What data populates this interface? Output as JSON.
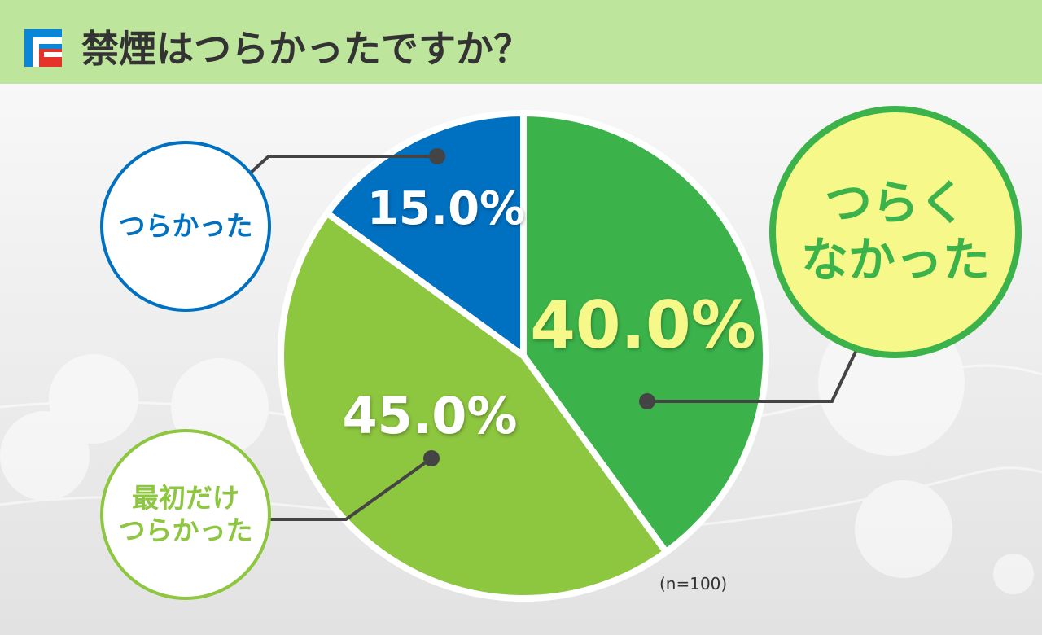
{
  "chart_data": {
    "type": "pie",
    "title": "禁煙はつらかったですか？",
    "categories": [
      "つらく\nなかった",
      "最初だけ\nつらかった",
      "つらかった"
    ],
    "values": [
      40.0,
      45.0,
      15.0
    ],
    "value_labels": [
      "40.0%",
      "45.0%",
      "15.0%"
    ],
    "colors": [
      "#3bb34a",
      "#8dc63f",
      "#0070c0"
    ],
    "note": "(n=100)"
  }
}
